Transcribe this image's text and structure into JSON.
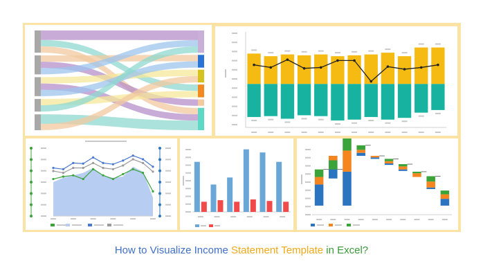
{
  "caption": {
    "part1": "How to Visualize Income ",
    "part2": "Statement Template",
    "part3": " in Excel?",
    "color1": "#3f6fc9",
    "color2": "#f0a818",
    "color3": "#3a9a3a"
  },
  "colors": {
    "frame": "#fbe3a6",
    "gold": "#f5bb12",
    "teal": "#17b3a0",
    "steelblue": "#6aa6d6",
    "red": "#f04a4a",
    "orange": "#f5861f",
    "green": "#3aa33a",
    "blue": "#2a74c0"
  },
  "chart_data": [
    {
      "type": "sankey",
      "left_nodes": 5,
      "right_nodes": 6,
      "flows": [
        {
          "from": 0,
          "to": 0,
          "weight": 3,
          "color": "#b58fc8"
        },
        {
          "from": 0,
          "to": 3,
          "weight": 2,
          "color": "#8fd8cf"
        },
        {
          "from": 0,
          "to": 5,
          "weight": 2,
          "color": "#f2c9a0"
        },
        {
          "from": 1,
          "to": 1,
          "weight": 2,
          "color": "#f2c9a0"
        },
        {
          "from": 1,
          "to": 4,
          "weight": 2,
          "color": "#b58fc8"
        },
        {
          "from": 1,
          "to": 0,
          "weight": 2,
          "color": "#9ec4ee"
        },
        {
          "from": 2,
          "to": 2,
          "weight": 2,
          "color": "#f5e79a"
        },
        {
          "from": 2,
          "to": 5,
          "weight": 2,
          "color": "#b58fc8"
        },
        {
          "from": 2,
          "to": 1,
          "weight": 2,
          "color": "#9ec4ee"
        },
        {
          "from": 3,
          "to": 3,
          "weight": 2,
          "color": "#f5e79a"
        },
        {
          "from": 3,
          "to": 0,
          "weight": 2,
          "color": "#8fd8cf"
        },
        {
          "from": 4,
          "to": 5,
          "weight": 3,
          "color": "#8fd8cf"
        },
        {
          "from": 4,
          "to": 2,
          "weight": 2,
          "color": "#f2c9a0"
        }
      ],
      "right_node_colors": [
        "#c8b0d8",
        "#2a74d6",
        "#d6c21e",
        "#f28a24",
        "#f2c9a0",
        "#5ed8c6"
      ]
    },
    {
      "type": "bar",
      "stacked": "diverging",
      "categories": 12,
      "series": [
        {
          "values": [
            35,
            32,
            34,
            33,
            34,
            32,
            33,
            34,
            36,
            32,
            42,
            42
          ]
        },
        {
          "values": [
            -38,
            -37,
            -40,
            -36,
            -37,
            -42,
            -41,
            -38,
            -41,
            -39,
            -33,
            -30
          ]
        }
      ],
      "line": [
        22,
        19,
        28,
        18,
        19,
        27,
        27,
        3,
        20,
        17,
        19,
        22
      ],
      "ylim": [
        -50,
        60
      ]
    },
    {
      "type": "area",
      "area": [
        55,
        62,
        66,
        70,
        78,
        66,
        62,
        64,
        80,
        72,
        30
      ],
      "lines": [
        {
          "values": [
            78,
            76,
            86,
            85,
            95,
            86,
            84,
            90,
            98,
            92,
            80
          ],
          "color": "#4a78d0"
        },
        {
          "values": [
            73,
            70,
            78,
            78,
            86,
            78,
            76,
            82,
            92,
            86,
            72
          ],
          "color": "#9a9a9a"
        },
        {
          "values": [
            60,
            64,
            66,
            60,
            76,
            66,
            60,
            68,
            76,
            70,
            40
          ],
          "color": "#3aa33a"
        }
      ],
      "ylim": [
        0,
        110
      ]
    },
    {
      "type": "bar",
      "categories": 6,
      "series": [
        {
          "values": [
            64,
            35,
            44,
            80,
            76,
            64
          ]
        },
        {
          "values": [
            13,
            15,
            13,
            16,
            14,
            13
          ]
        }
      ],
      "ylim": [
        0,
        85
      ]
    },
    {
      "type": "waterfall",
      "steps": [
        {
          "base": 12,
          "segs": [
            28,
            10,
            10
          ]
        },
        {
          "base": 48,
          "segs": [
            30,
            -6,
            -12
          ]
        },
        {
          "base": 12,
          "segs": [
            45,
            28,
            25
          ]
        },
        {
          "base": 78,
          "segs": [
            4,
            4,
            6
          ]
        },
        {
          "base": 74,
          "segs": [
            2,
            2,
            0
          ]
        },
        {
          "base": 66,
          "segs": [
            2,
            3,
            3
          ]
        },
        {
          "base": 58,
          "segs": [
            2,
            4,
            3
          ]
        },
        {
          "base": 50,
          "segs": [
            0,
            5,
            2
          ]
        },
        {
          "base": 34,
          "segs": [
            2,
            8,
            7
          ]
        },
        {
          "base": 12,
          "segs": [
            9,
            6,
            5
          ]
        }
      ],
      "ylim": [
        0,
        90
      ]
    }
  ]
}
